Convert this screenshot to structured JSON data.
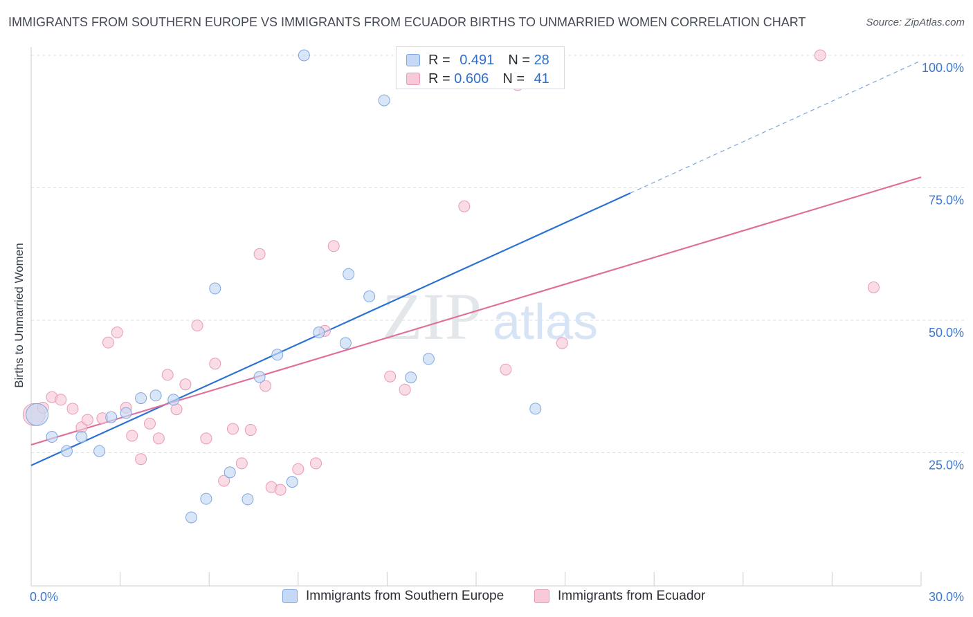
{
  "title": "IMMIGRANTS FROM SOUTHERN EUROPE VS IMMIGRANTS FROM ECUADOR BIRTHS TO UNMARRIED WOMEN CORRELATION CHART",
  "source": "Source: ZipAtlas.com",
  "watermark": {
    "zip": "ZIP",
    "atlas": "atlas"
  },
  "legend": {
    "series": [
      {
        "r_label": "R =",
        "r_value": "0.491",
        "n_label": "N =",
        "n_value": "28"
      },
      {
        "r_label": "R =",
        "r_value": "0.606",
        "n_label": "N =",
        "n_value": "41"
      }
    ]
  },
  "colors": {
    "blue_fill": "#c5d8f5",
    "blue_stroke": "#7ea6e0",
    "blue_line": "#2a73d2",
    "pink_fill": "#f8cad8",
    "pink_stroke": "#e99ab5",
    "pink_line": "#e0709a",
    "grid": "#dcdfe4",
    "tick_label": "#3d78d0"
  },
  "chart_data": {
    "type": "scatter",
    "title": "IMMIGRANTS FROM SOUTHERN EUROPE VS IMMIGRANTS FROM ECUADOR BIRTHS TO UNMARRIED WOMEN CORRELATION CHART",
    "xlabel": "",
    "ylabel": "Births to Unmarried Women",
    "xlim": [
      0,
      30
    ],
    "ylim": [
      0,
      100
    ],
    "x_tick_labels": [
      "0.0%",
      "30.0%"
    ],
    "y_ticks": [
      25,
      50,
      75,
      100
    ],
    "y_tick_labels": [
      "25.0%",
      "50.0%",
      "75.0%",
      "100.0%"
    ],
    "grid": true,
    "legend_position": "top-center",
    "series": [
      {
        "name": "Immigrants from Southern Europe",
        "color": "#7ea6e0",
        "points": [
          [
            0.2,
            32.2
          ],
          [
            0.7,
            28.0
          ],
          [
            1.2,
            25.3
          ],
          [
            1.7,
            28.0
          ],
          [
            2.3,
            25.3
          ],
          [
            2.7,
            31.7
          ],
          [
            3.2,
            32.5
          ],
          [
            3.7,
            35.3
          ],
          [
            4.2,
            35.8
          ],
          [
            4.8,
            35.0
          ],
          [
            5.4,
            12.8
          ],
          [
            5.9,
            16.3
          ],
          [
            6.2,
            56.0
          ],
          [
            6.7,
            21.3
          ],
          [
            7.3,
            16.2
          ],
          [
            7.7,
            39.3
          ],
          [
            8.3,
            43.5
          ],
          [
            8.8,
            19.5
          ],
          [
            9.2,
            100.0
          ],
          [
            9.7,
            47.7
          ],
          [
            10.6,
            45.7
          ],
          [
            10.7,
            58.7
          ],
          [
            11.4,
            54.5
          ],
          [
            11.9,
            91.5
          ],
          [
            12.8,
            39.2
          ],
          [
            13.4,
            42.7
          ],
          [
            14.0,
            100.0
          ],
          [
            17.0,
            33.3
          ]
        ],
        "trend": {
          "x": [
            0,
            20.2
          ],
          "y": [
            22.6,
            74.0
          ],
          "extension_x": [
            20.2,
            30
          ],
          "extension_y": [
            74.0,
            99.0
          ]
        }
      },
      {
        "name": "Immigrants from Ecuador",
        "color": "#e99ab5",
        "points": [
          [
            0.1,
            32.2
          ],
          [
            0.4,
            33.5
          ],
          [
            0.7,
            35.5
          ],
          [
            1.0,
            35.0
          ],
          [
            1.4,
            33.3
          ],
          [
            1.7,
            29.8
          ],
          [
            1.9,
            31.2
          ],
          [
            2.4,
            31.5
          ],
          [
            2.6,
            45.8
          ],
          [
            2.9,
            47.7
          ],
          [
            3.2,
            33.5
          ],
          [
            3.4,
            28.2
          ],
          [
            3.7,
            23.8
          ],
          [
            4.0,
            30.5
          ],
          [
            4.3,
            27.7
          ],
          [
            4.6,
            39.7
          ],
          [
            4.9,
            33.2
          ],
          [
            5.2,
            37.9
          ],
          [
            5.6,
            49.0
          ],
          [
            5.9,
            27.7
          ],
          [
            6.2,
            41.8
          ],
          [
            6.5,
            19.7
          ],
          [
            6.8,
            29.5
          ],
          [
            7.1,
            23.0
          ],
          [
            7.4,
            29.3
          ],
          [
            7.7,
            62.5
          ],
          [
            7.9,
            37.6
          ],
          [
            8.1,
            18.5
          ],
          [
            8.4,
            18.0
          ],
          [
            9.0,
            21.9
          ],
          [
            9.6,
            23.0
          ],
          [
            9.9,
            48.0
          ],
          [
            10.2,
            64.0
          ],
          [
            12.1,
            39.4
          ],
          [
            12.6,
            36.9
          ],
          [
            14.6,
            71.5
          ],
          [
            16.0,
            40.7
          ],
          [
            16.4,
            94.4
          ],
          [
            17.9,
            45.7
          ],
          [
            26.6,
            100.0
          ],
          [
            28.4,
            56.2
          ]
        ],
        "trend": {
          "x": [
            0,
            30
          ],
          "y": [
            26.5,
            77.0
          ]
        }
      }
    ]
  },
  "bottom_legend": {
    "items": [
      {
        "label": "Immigrants from Southern Europe"
      },
      {
        "label": "Immigrants from Ecuador"
      }
    ]
  }
}
